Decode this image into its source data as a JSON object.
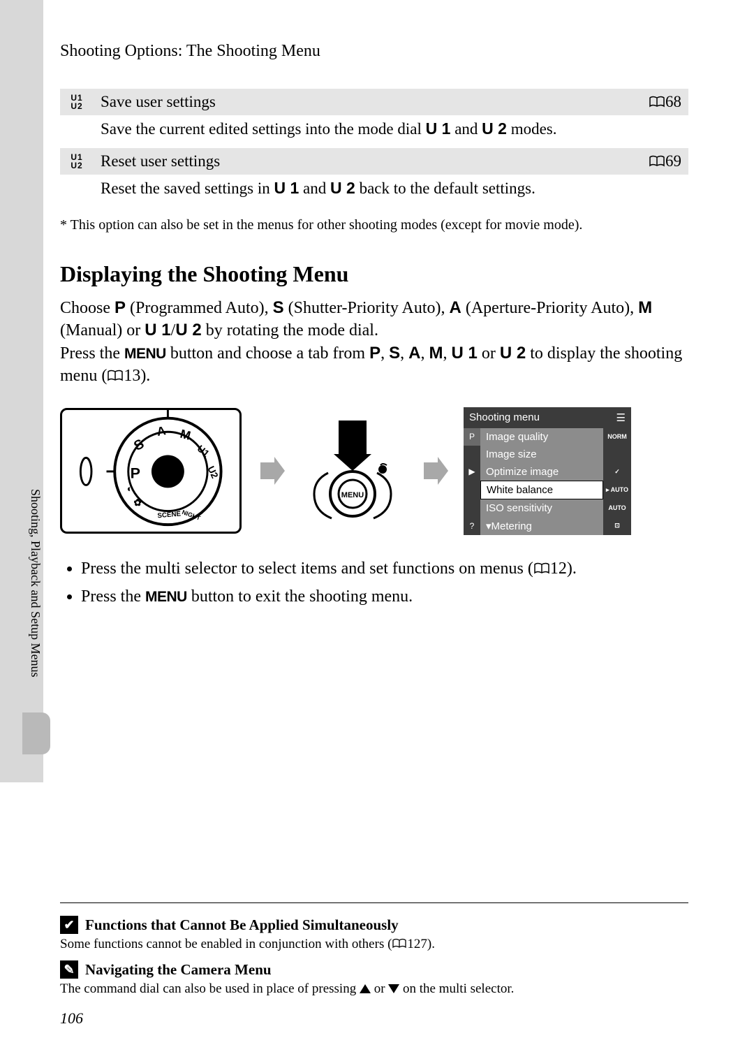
{
  "breadcrumb": "Shooting Options: The Shooting Menu",
  "table": {
    "rows": [
      {
        "icon": "U1\nU2",
        "title": "Save user settings",
        "page": "68",
        "desc_pre": "Save the current edited settings into the mode dial ",
        "desc_bold1": "U 1",
        "desc_mid": " and ",
        "desc_bold2": "U 2",
        "desc_post": " modes."
      },
      {
        "icon": "U1\nU2",
        "title": "Reset user settings",
        "page": "69",
        "desc_pre": "Reset the saved settings in ",
        "desc_bold1": "U 1",
        "desc_mid": " and ",
        "desc_bold2": "U 2",
        "desc_post": " back to the default settings."
      }
    ]
  },
  "footnote": "*    This option can also be set in the menus for other shooting modes (except for movie mode).",
  "h2": "Displaying the Shooting Menu",
  "paragraph": {
    "p1a": "Choose ",
    "mode_p": "P",
    "p1b": " (Programmed Auto), ",
    "mode_s": "S",
    "p1c": " (Shutter-Priority Auto), ",
    "mode_a": "A",
    "p1d": " (Aperture-Priority Auto), ",
    "mode_m": "M",
    "p1e": " (Manual) or ",
    "mode_u1": "U 1",
    "slash": "/",
    "mode_u2": "U 2",
    "p1f": " by rotating the mode dial.",
    "p2a": "Press the ",
    "menu_word": "MENU",
    "p2b": " button and choose a tab from ",
    "comma": ", ",
    "p2c": " or ",
    "p2d": " to display the shooting menu (",
    "ref1": "13",
    "p2e": ")."
  },
  "camera_menu": {
    "title": "Shooting menu",
    "items": [
      {
        "side": "P",
        "label": "Image quality",
        "tag": "NORM",
        "side_sel": true
      },
      {
        "side": "",
        "label": "Image size",
        "tag": ""
      },
      {
        "side": "▶",
        "label": "Optimize image",
        "tag": "✓"
      },
      {
        "side": "",
        "label": "White balance",
        "tag": "AUTO",
        "hilite": true,
        "arrow": true
      },
      {
        "side": "",
        "label": "ISO sensitivity",
        "tag": "AUTO"
      },
      {
        "side": "?",
        "label": "Metering",
        "tag": "⊡",
        "prefix": "▾"
      }
    ]
  },
  "bullets": {
    "b1a": "Press the multi selector to select items and set functions on menus (",
    "b1ref": "12",
    "b1b": ").",
    "b2a": "Press the ",
    "b2b": " button to exit the shooting menu."
  },
  "vertical_label": "Shooting, Playback and Setup Menus",
  "notes": {
    "n1_title": "Functions that Cannot Be Applied Simultaneously",
    "n1_text_a": "Some functions cannot be enabled in conjunction with others (",
    "n1_ref": "127",
    "n1_text_b": ").",
    "n2_title": "Navigating the Camera Menu",
    "n2_text_a": "The command dial can also be used in place of pressing ",
    "n2_text_b": " or ",
    "n2_text_c": " on the multi selector."
  },
  "page_num": "106",
  "colors": {
    "sidebar": "#d8d8d8",
    "tab": "#b9b9b9",
    "row_bg": "#e5e5e5",
    "menu_dark": "#3b3b3b",
    "menu_mid": "#8c8c8c"
  }
}
